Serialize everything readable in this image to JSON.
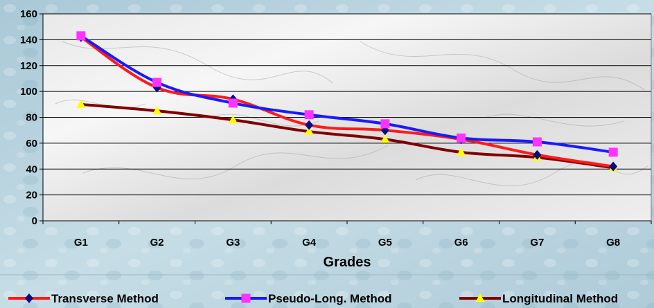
{
  "chart_data": {
    "type": "line",
    "title": "",
    "xlabel": "Grades",
    "ylabel": "",
    "categories": [
      "G1",
      "G2",
      "G3",
      "G4",
      "G5",
      "G6",
      "G7",
      "G8"
    ],
    "ylim": [
      0,
      160
    ],
    "yticks": [
      0,
      20,
      40,
      60,
      80,
      100,
      120,
      140,
      160
    ],
    "grid": true,
    "legend_position": "bottom",
    "series": [
      {
        "name": "Transverse Method",
        "values": [
          142,
          103,
          94,
          74,
          70,
          63,
          51,
          42
        ],
        "color": "#ff1a1a",
        "marker": "diamond",
        "marker_color": "#0a0a80"
      },
      {
        "name": "Pseudo-Long. Method",
        "values": [
          143,
          107,
          91,
          82,
          75,
          64,
          61,
          53
        ],
        "color": "#1a1aff",
        "marker": "square",
        "marker_color": "#ff33ff"
      },
      {
        "name": "Longitudinal Method",
        "values": [
          90,
          85,
          78,
          69,
          63,
          53,
          49,
          41
        ],
        "color": "#800000",
        "marker": "triangle",
        "marker_color": "#ffff00"
      }
    ]
  }
}
